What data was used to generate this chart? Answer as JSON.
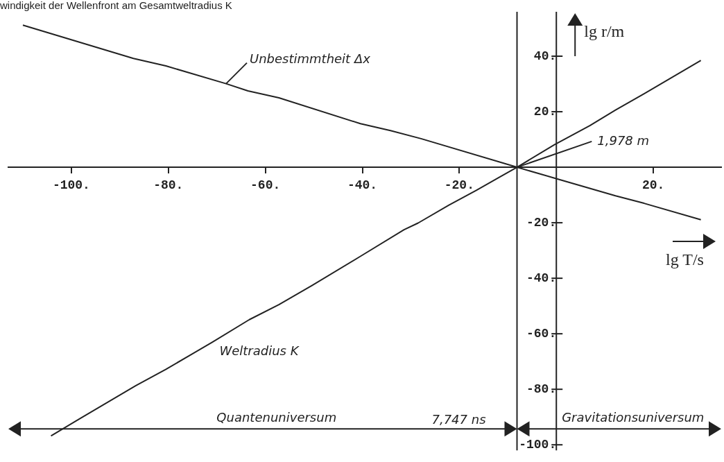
{
  "chart_data": {
    "type": "line",
    "title": "windigkeit der Wellenfront am Gesamtweltradius K",
    "xlabel": "lg T/s",
    "ylabel": "lg r/m",
    "series": [
      {
        "name": "Unbestimmtheit Δx",
        "color": "#222222",
        "x": [
          -110,
          -87.2,
          -80.5,
          -68.1,
          -63.6,
          -57.2,
          -40.4,
          -34.2,
          -27.9,
          -8.11,
          -0.4,
          12.2,
          18.1,
          29.8
        ],
        "values": [
          51.2,
          39.2,
          36.5,
          30.1,
          27.5,
          25,
          15.7,
          13.2,
          10.3,
          0,
          -3.9,
          -10.3,
          -13,
          -18.9
        ]
      },
      {
        "name": "Weltradius K",
        "color": "#222222",
        "x": [
          -104.2,
          -98.1,
          -86.7,
          -80.5,
          -70.9,
          -63.3,
          -57.2,
          -50.4,
          -40.4,
          -31.4,
          -28.5,
          -22.2,
          -16.5,
          -8.11,
          -0.4,
          6.9,
          12.2,
          18.1,
          29.8
        ],
        "values": [
          -96.8,
          -90.4,
          -78.7,
          -72.8,
          -63,
          -54.9,
          -49.5,
          -42.6,
          -32.1,
          -22.5,
          -20.1,
          -13.7,
          -8.3,
          0,
          8.1,
          15,
          20.6,
          26.5,
          38.5
        ]
      },
      {
        "name": "1,978 m",
        "color": "#222222",
        "x": [
          -8.11,
          7.3
        ],
        "values": [
          0,
          9.3
        ]
      }
    ],
    "xlim": [
      -113,
      34
    ],
    "ylim": [
      -102,
      56
    ],
    "xticks": [
      {
        "value": -100,
        "label": "-100."
      },
      {
        "value": -80,
        "label": "-80."
      },
      {
        "value": -60,
        "label": "-60."
      },
      {
        "value": -40,
        "label": "-40."
      },
      {
        "value": -20,
        "label": "-20."
      },
      {
        "value": 20,
        "label": "20."
      }
    ],
    "yticks": [
      {
        "value": 40,
        "label": "40."
      },
      {
        "value": 20,
        "label": "20."
      },
      {
        "value": -20,
        "label": "-20."
      },
      {
        "value": -40,
        "label": "-40."
      },
      {
        "value": -60,
        "label": "-60."
      },
      {
        "value": -80,
        "label": "-80."
      },
      {
        "value": -100,
        "label": "-100."
      }
    ],
    "ref_lines": [
      {
        "axis": "x",
        "value": -8.11,
        "label": "7,747 ns"
      }
    ],
    "annotations": [
      "Quantenuniversum",
      "Gravitationsuniversum"
    ],
    "grid": false,
    "legend": false,
    "marker": "none",
    "line_style": "solid"
  }
}
